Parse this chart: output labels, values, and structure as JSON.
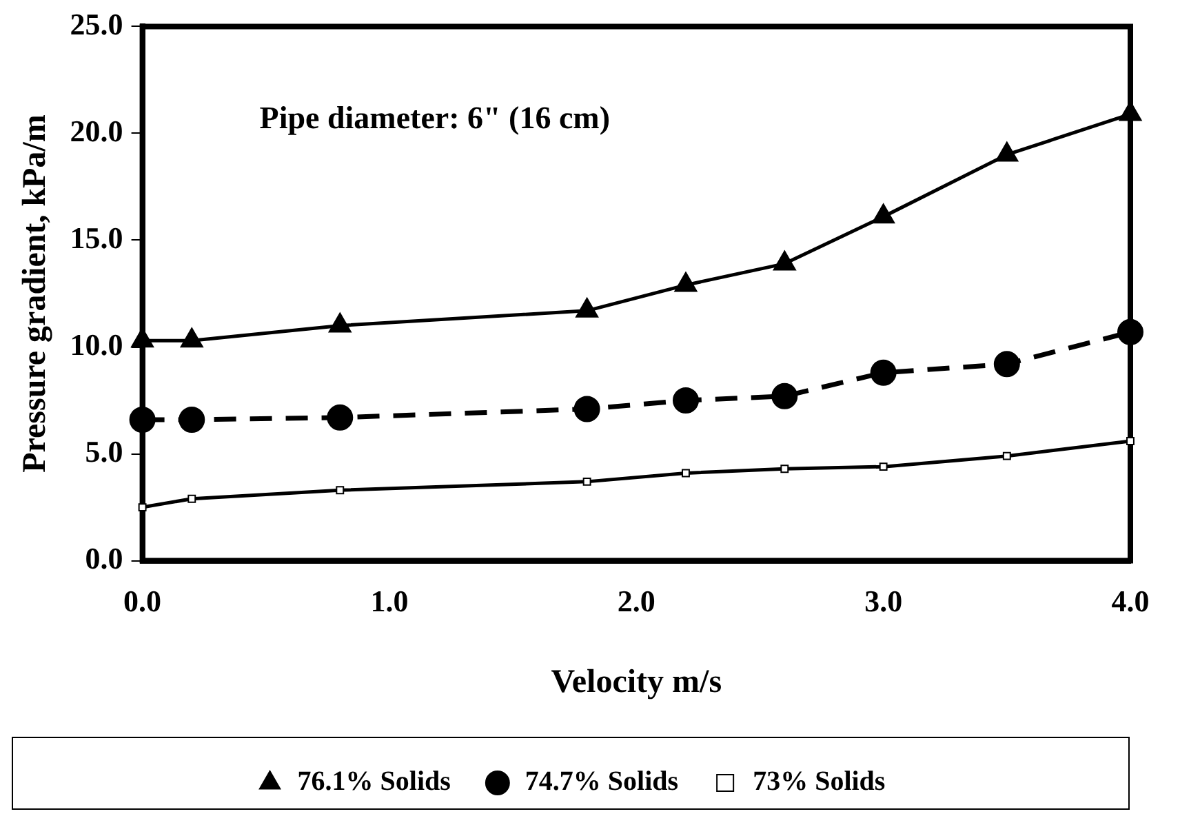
{
  "chart_data": {
    "type": "line",
    "xlabel": "Velocity m/s",
    "ylabel": "Pressure gradient, kPa/m",
    "annotations": [
      "Pipe diameter: 6\" (16 cm)"
    ],
    "x": [
      0,
      0.2,
      0.8,
      1.8,
      2.2,
      2.6,
      3.0,
      3.5,
      4.0
    ],
    "xlim": [
      0,
      4
    ],
    "xticks": [
      {
        "value": 0,
        "label": "0.0"
      },
      {
        "value": 1,
        "label": "1.0"
      },
      {
        "value": 2,
        "label": "2.0"
      },
      {
        "value": 3,
        "label": "3.0"
      },
      {
        "value": 4,
        "label": "4.0"
      }
    ],
    "ylim": [
      0,
      25
    ],
    "yticks": [
      {
        "value": 0,
        "label": "0.0"
      },
      {
        "value": 5,
        "label": "5.0"
      },
      {
        "value": 10,
        "label": "10.0"
      },
      {
        "value": 15,
        "label": "15.0"
      },
      {
        "value": 20,
        "label": "20.0"
      },
      {
        "value": 25,
        "label": "25.0"
      }
    ],
    "grid": false,
    "legend": "bottom",
    "series": [
      {
        "name": "76.1% Solids",
        "color": "#000000",
        "marker": "triangle",
        "line_style": "solid",
        "values": [
          10.3,
          10.3,
          11.0,
          11.7,
          12.9,
          13.9,
          16.1,
          19.0,
          20.9
        ]
      },
      {
        "name": "74.7% Solids",
        "color": "#000000",
        "marker": "circle",
        "line_style": "dashed",
        "values": [
          6.6,
          6.6,
          6.7,
          7.1,
          7.5,
          7.7,
          8.8,
          9.2,
          10.7
        ]
      },
      {
        "name": "73% Solids",
        "color": "#000000",
        "marker": "square",
        "line_style": "solid",
        "values": [
          2.5,
          2.9,
          3.3,
          3.7,
          4.1,
          4.3,
          4.4,
          4.9,
          5.6
        ]
      }
    ]
  }
}
